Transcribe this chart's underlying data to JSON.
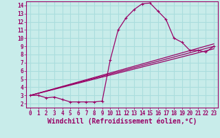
{
  "bg_color": "#c8ecea",
  "line_color": "#990066",
  "grid_color": "#aadddd",
  "xlabel": "Windchill (Refroidissement éolien,°C)",
  "xlim": [
    -0.5,
    23.5
  ],
  "ylim": [
    1.5,
    14.5
  ],
  "xticks": [
    0,
    1,
    2,
    3,
    4,
    5,
    6,
    7,
    8,
    9,
    10,
    11,
    12,
    13,
    14,
    15,
    16,
    17,
    18,
    19,
    20,
    21,
    22,
    23
  ],
  "yticks": [
    2,
    3,
    4,
    5,
    6,
    7,
    8,
    9,
    10,
    11,
    12,
    13,
    14
  ],
  "line1_x": [
    0,
    1,
    2,
    3,
    4,
    5,
    6,
    7,
    8,
    9,
    10,
    11,
    12,
    13,
    14,
    15,
    16,
    17,
    18,
    19,
    20,
    21,
    22,
    23
  ],
  "line1_y": [
    3.0,
    3.0,
    2.7,
    2.8,
    2.5,
    2.2,
    2.2,
    2.2,
    2.2,
    2.3,
    7.3,
    11.0,
    12.5,
    13.5,
    14.2,
    14.3,
    13.3,
    12.3,
    10.0,
    9.5,
    8.5,
    8.5,
    8.3,
    9.0
  ],
  "line2_x": [
    0,
    23
  ],
  "line2_y": [
    3.0,
    9.3
  ],
  "line3_x": [
    0,
    23
  ],
  "line3_y": [
    3.0,
    8.7
  ],
  "line4_x": [
    0,
    23
  ],
  "line4_y": [
    3.0,
    9.0
  ],
  "font_family": "monospace",
  "tick_fontsize": 5.5,
  "label_fontsize": 7.0
}
